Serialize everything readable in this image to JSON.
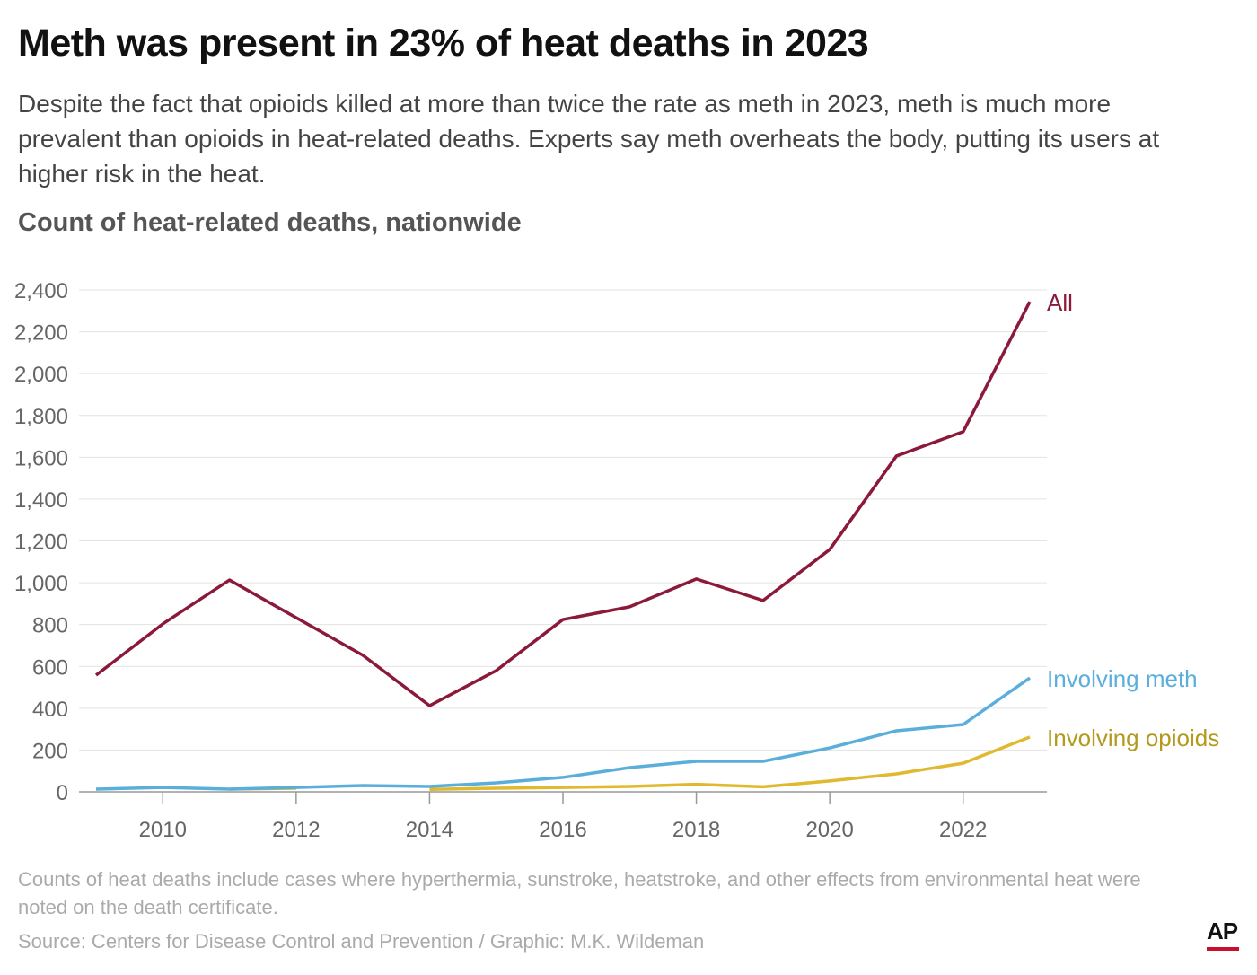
{
  "title": "Meth was present in 23% of heat deaths in 2023",
  "subtitle": "Despite the fact that opioids killed at more than twice the rate as meth in 2023, meth is much more prevalent than opioids in heat-related deaths. Experts say meth overheats the body, putting its users at higher risk in the heat.",
  "note": "Counts of heat deaths include cases where hyperthermia, sunstroke, heatstroke, and other effects from environmental heat were noted on the death certificate.",
  "source": "Source: Centers for Disease Control and Prevention / Graphic: M.K. Wildeman",
  "logo": "AP",
  "chart_data": {
    "type": "line",
    "title": "Count of heat-related deaths, nationwide",
    "xlabel": "",
    "ylabel": "",
    "x": [
      2009,
      2010,
      2011,
      2012,
      2013,
      2014,
      2015,
      2016,
      2017,
      2018,
      2019,
      2020,
      2021,
      2022,
      2023
    ],
    "xlim": [
      2009,
      2023
    ],
    "ylim": [
      0,
      2400
    ],
    "yticks": [
      "0",
      "200",
      "400",
      "600",
      "800",
      "1,000",
      "1,200",
      "1,400",
      "1,600",
      "1,800",
      "2,000",
      "2,200",
      "2,400"
    ],
    "xticks": [
      "2010",
      "2012",
      "2014",
      "2016",
      "2018",
      "2020",
      "2022"
    ],
    "grid": true,
    "legend": "inline labels at line ends",
    "series": [
      {
        "name": "All",
        "color": "#8b1a3a",
        "values": [
          558,
          803,
          1013,
          833,
          653,
          412,
          580,
          824,
          885,
          1018,
          915,
          1159,
          1606,
          1722,
          2344
        ]
      },
      {
        "name": "Involving meth",
        "color": "#5aaedc",
        "values": [
          13,
          21,
          13,
          21,
          30,
          26,
          43,
          69,
          116,
          146,
          146,
          210,
          292,
          322,
          545
        ]
      },
      {
        "name": "Involving opioids",
        "color": "#e0b92e",
        "label_color": "#b39a1e",
        "values": [
          null,
          null,
          13,
          17,
          null,
          12,
          17,
          21,
          26,
          36,
          24,
          52,
          86,
          137,
          262
        ]
      }
    ]
  }
}
